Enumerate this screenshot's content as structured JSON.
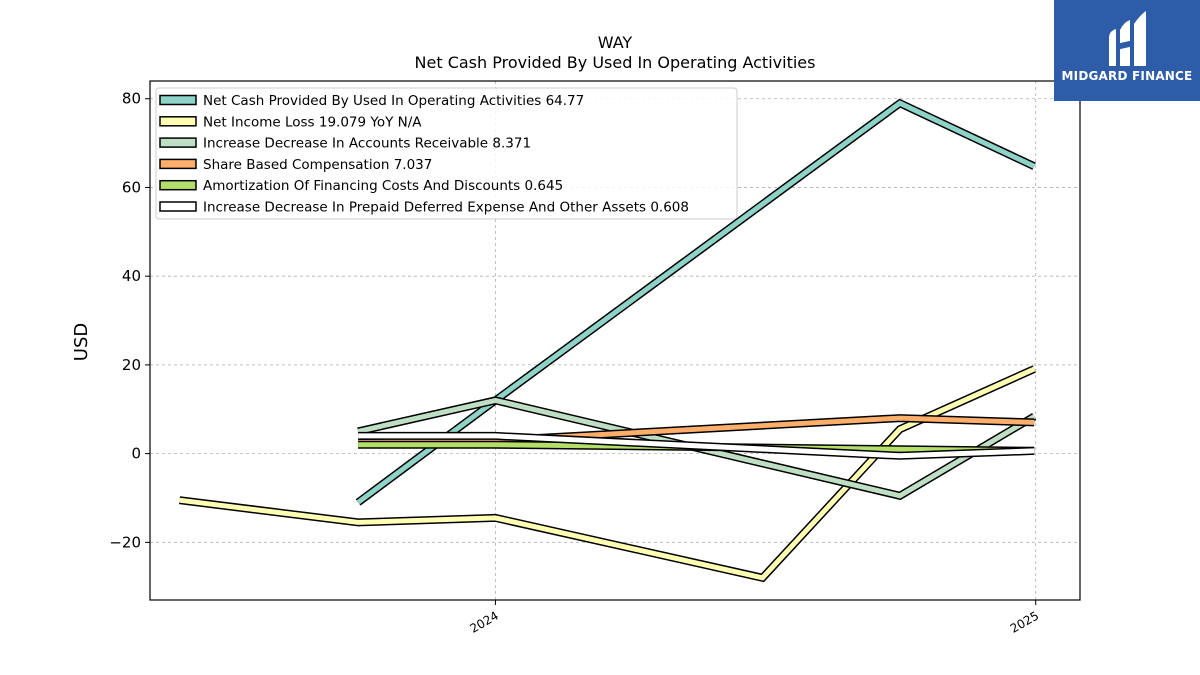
{
  "chart_data": {
    "type": "line",
    "title": "WAY",
    "subtitle": "Net Cash Provided By Used In Operating Activities",
    "ylabel": "USD",
    "xlabel": "",
    "ylim": [
      -33,
      84
    ],
    "yticks": [
      80,
      60,
      40,
      20,
      0,
      -20
    ],
    "ytick_labels": [
      "80",
      "60",
      "40",
      "20",
      "0",
      "−20"
    ],
    "xlim": [
      "2023-05-12",
      "2025-01-31"
    ],
    "xticks": [
      "2024-01-01",
      "2025-01-01"
    ],
    "xtick_labels": [
      "2024",
      "2025"
    ],
    "grid": true,
    "legend_position": "top-left",
    "series": [
      {
        "name": "Net Cash Provided By Used In Operating Activities",
        "legend_label": "Net Cash Provided By Used In Operating Activities  64.77",
        "color": "#8dd3c7",
        "x": [
          "2023-09-30",
          "2024-01-01",
          "2024-10-01",
          "2024-12-31"
        ],
        "values": [
          -11,
          12,
          79,
          64.77
        ]
      },
      {
        "name": "Net Income Loss",
        "legend_label": "Net Income Loss  19.079 YoY N/A",
        "color": "#ffffb3",
        "x": [
          "2023-06-01",
          "2023-09-30",
          "2024-01-01",
          "2024-06-30",
          "2024-10-01",
          "2024-12-31"
        ],
        "values": [
          -10.5,
          -15.5,
          -14.5,
          -28,
          5.5,
          19.079
        ]
      },
      {
        "name": "Increase Decrease In Accounts Receivable",
        "legend_label": "Increase Decrease In Accounts Receivable  8.371",
        "color": "#bfdfc5",
        "x": [
          "2023-09-30",
          "2024-01-01",
          "2024-10-01",
          "2024-12-31"
        ],
        "values": [
          5,
          12,
          -9.5,
          8.371
        ]
      },
      {
        "name": "Share Based Compensation",
        "legend_label": "Share Based Compensation  7.037",
        "color": "#fdae6b",
        "x": [
          "2023-09-30",
          "2024-01-01",
          "2024-10-01",
          "2024-12-31"
        ],
        "values": [
          2.5,
          3,
          8,
          7.037
        ]
      },
      {
        "name": "Amortization Of Financing Costs And Discounts",
        "legend_label": "Amortization Of Financing Costs And Discounts  0.645",
        "color": "#b3de69",
        "x": [
          "2023-09-30",
          "2024-01-01",
          "2024-10-01",
          "2024-12-31"
        ],
        "values": [
          2,
          2,
          1,
          0.645
        ]
      },
      {
        "name": "Increase Decrease In Prepaid Deferred Expense And Other Assets",
        "legend_label": "Increase Decrease In Prepaid Deferred Expense And Other Assets  0.608",
        "color": "#ffffff",
        "x": [
          "2023-09-30",
          "2024-01-01",
          "2024-10-01",
          "2024-12-31"
        ],
        "values": [
          4,
          4,
          -0.5,
          0.608
        ]
      }
    ]
  },
  "logo": {
    "name": "MIDGARD FINANCE",
    "background": "#2d5ca8"
  }
}
